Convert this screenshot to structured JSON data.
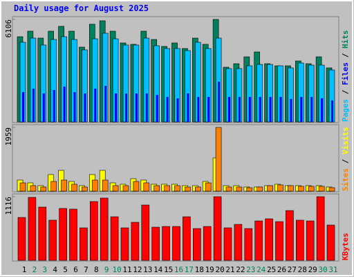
{
  "chart_data": [
    {
      "type": "bar",
      "title": "Daily usage for August 2025",
      "ylim": [
        0,
        6106
      ],
      "yticks": [
        6106
      ],
      "legend_separator": "/",
      "series": [
        {
          "name": "Hits",
          "color": "#00805c",
          "values": [
            5075,
            5405,
            4992,
            5405,
            5694,
            5405,
            4456,
            5818,
            6024,
            5405,
            4704,
            4621,
            5405,
            4910,
            4497,
            4704,
            4373,
            4992,
            4621,
            6106,
            3259,
            3466,
            3878,
            4167,
            3466,
            3342,
            3342,
            3631,
            3466,
            3878,
            3218
          ]
        },
        {
          "name": "Files",
          "color": "#0000ff",
          "values": [
            1774,
            1980,
            1692,
            1898,
            2104,
            1774,
            1692,
            1980,
            2146,
            1692,
            1692,
            1692,
            1692,
            1609,
            1485,
            1403,
            1692,
            1485,
            1485,
            2393,
            1485,
            1485,
            1485,
            1485,
            1485,
            1485,
            1362,
            1485,
            1485,
            1403,
            1279
          ]
        },
        {
          "name": "Pages",
          "color": "#00c0ff",
          "values": [
            4745,
            4992,
            4580,
            4910,
            5075,
            4910,
            4291,
            4951,
            5281,
            4951,
            4580,
            4580,
            4992,
            4539,
            4373,
            4373,
            4250,
            4745,
            4373,
            4992,
            3177,
            3177,
            3342,
            3424,
            3424,
            3342,
            3218,
            3507,
            3383,
            3383,
            3094
          ]
        }
      ]
    },
    {
      "type": "bar",
      "ylim": [
        0,
        1959
      ],
      "yticks": [
        1959
      ],
      "legend_separator": "/",
      "series": [
        {
          "name": "Visits",
          "color": "#ffff00",
          "values": [
            341,
            255,
            170,
            511,
            639,
            298,
            170,
            511,
            639,
            255,
            213,
            383,
            341,
            213,
            213,
            213,
            170,
            170,
            298,
            1022,
            170,
            170,
            128,
            128,
            170,
            213,
            170,
            170,
            170,
            170,
            128
          ]
        },
        {
          "name": "Sites",
          "color": "#ff8000",
          "values": [
            255,
            170,
            128,
            298,
            341,
            213,
            128,
            341,
            341,
            170,
            170,
            298,
            255,
            170,
            170,
            170,
            128,
            128,
            255,
            1959,
            128,
            128,
            106,
            128,
            170,
            192,
            170,
            149,
            149,
            149,
            106
          ]
        }
      ]
    },
    {
      "type": "bar",
      "ylim": [
        0,
        1116
      ],
      "yticks": [
        1116
      ],
      "categories": [
        "1",
        "2",
        "3",
        "4",
        "5",
        "6",
        "7",
        "8",
        "9",
        "10",
        "11",
        "12",
        "13",
        "14",
        "15",
        "16",
        "17",
        "18",
        "19",
        "20",
        "21",
        "22",
        "23",
        "24",
        "25",
        "26",
        "27",
        "28",
        "29",
        "30",
        "31"
      ],
      "category_colors": [
        "#000000",
        "#00805c",
        "#00805c",
        "#000000",
        "#000000",
        "#000000",
        "#000000",
        "#000000",
        "#00805c",
        "#00805c",
        "#000000",
        "#000000",
        "#000000",
        "#000000",
        "#000000",
        "#00805c",
        "#00805c",
        "#000000",
        "#000000",
        "#000000",
        "#000000",
        "#000000",
        "#00805c",
        "#00805c",
        "#000000",
        "#000000",
        "#000000",
        "#000000",
        "#000000",
        "#00805c",
        "#00805c"
      ],
      "series": [
        {
          "name": "KBytes",
          "color": "#ff0000",
          "values": [
            752,
            1104,
            934,
            704,
            910,
            898,
            570,
            1031,
            1092,
            764,
            570,
            667,
            970,
            582,
            594,
            594,
            764,
            558,
            594,
            1116,
            570,
            631,
            558,
            691,
            728,
            679,
            873,
            704,
            691,
            1116,
            619
          ]
        }
      ]
    }
  ]
}
